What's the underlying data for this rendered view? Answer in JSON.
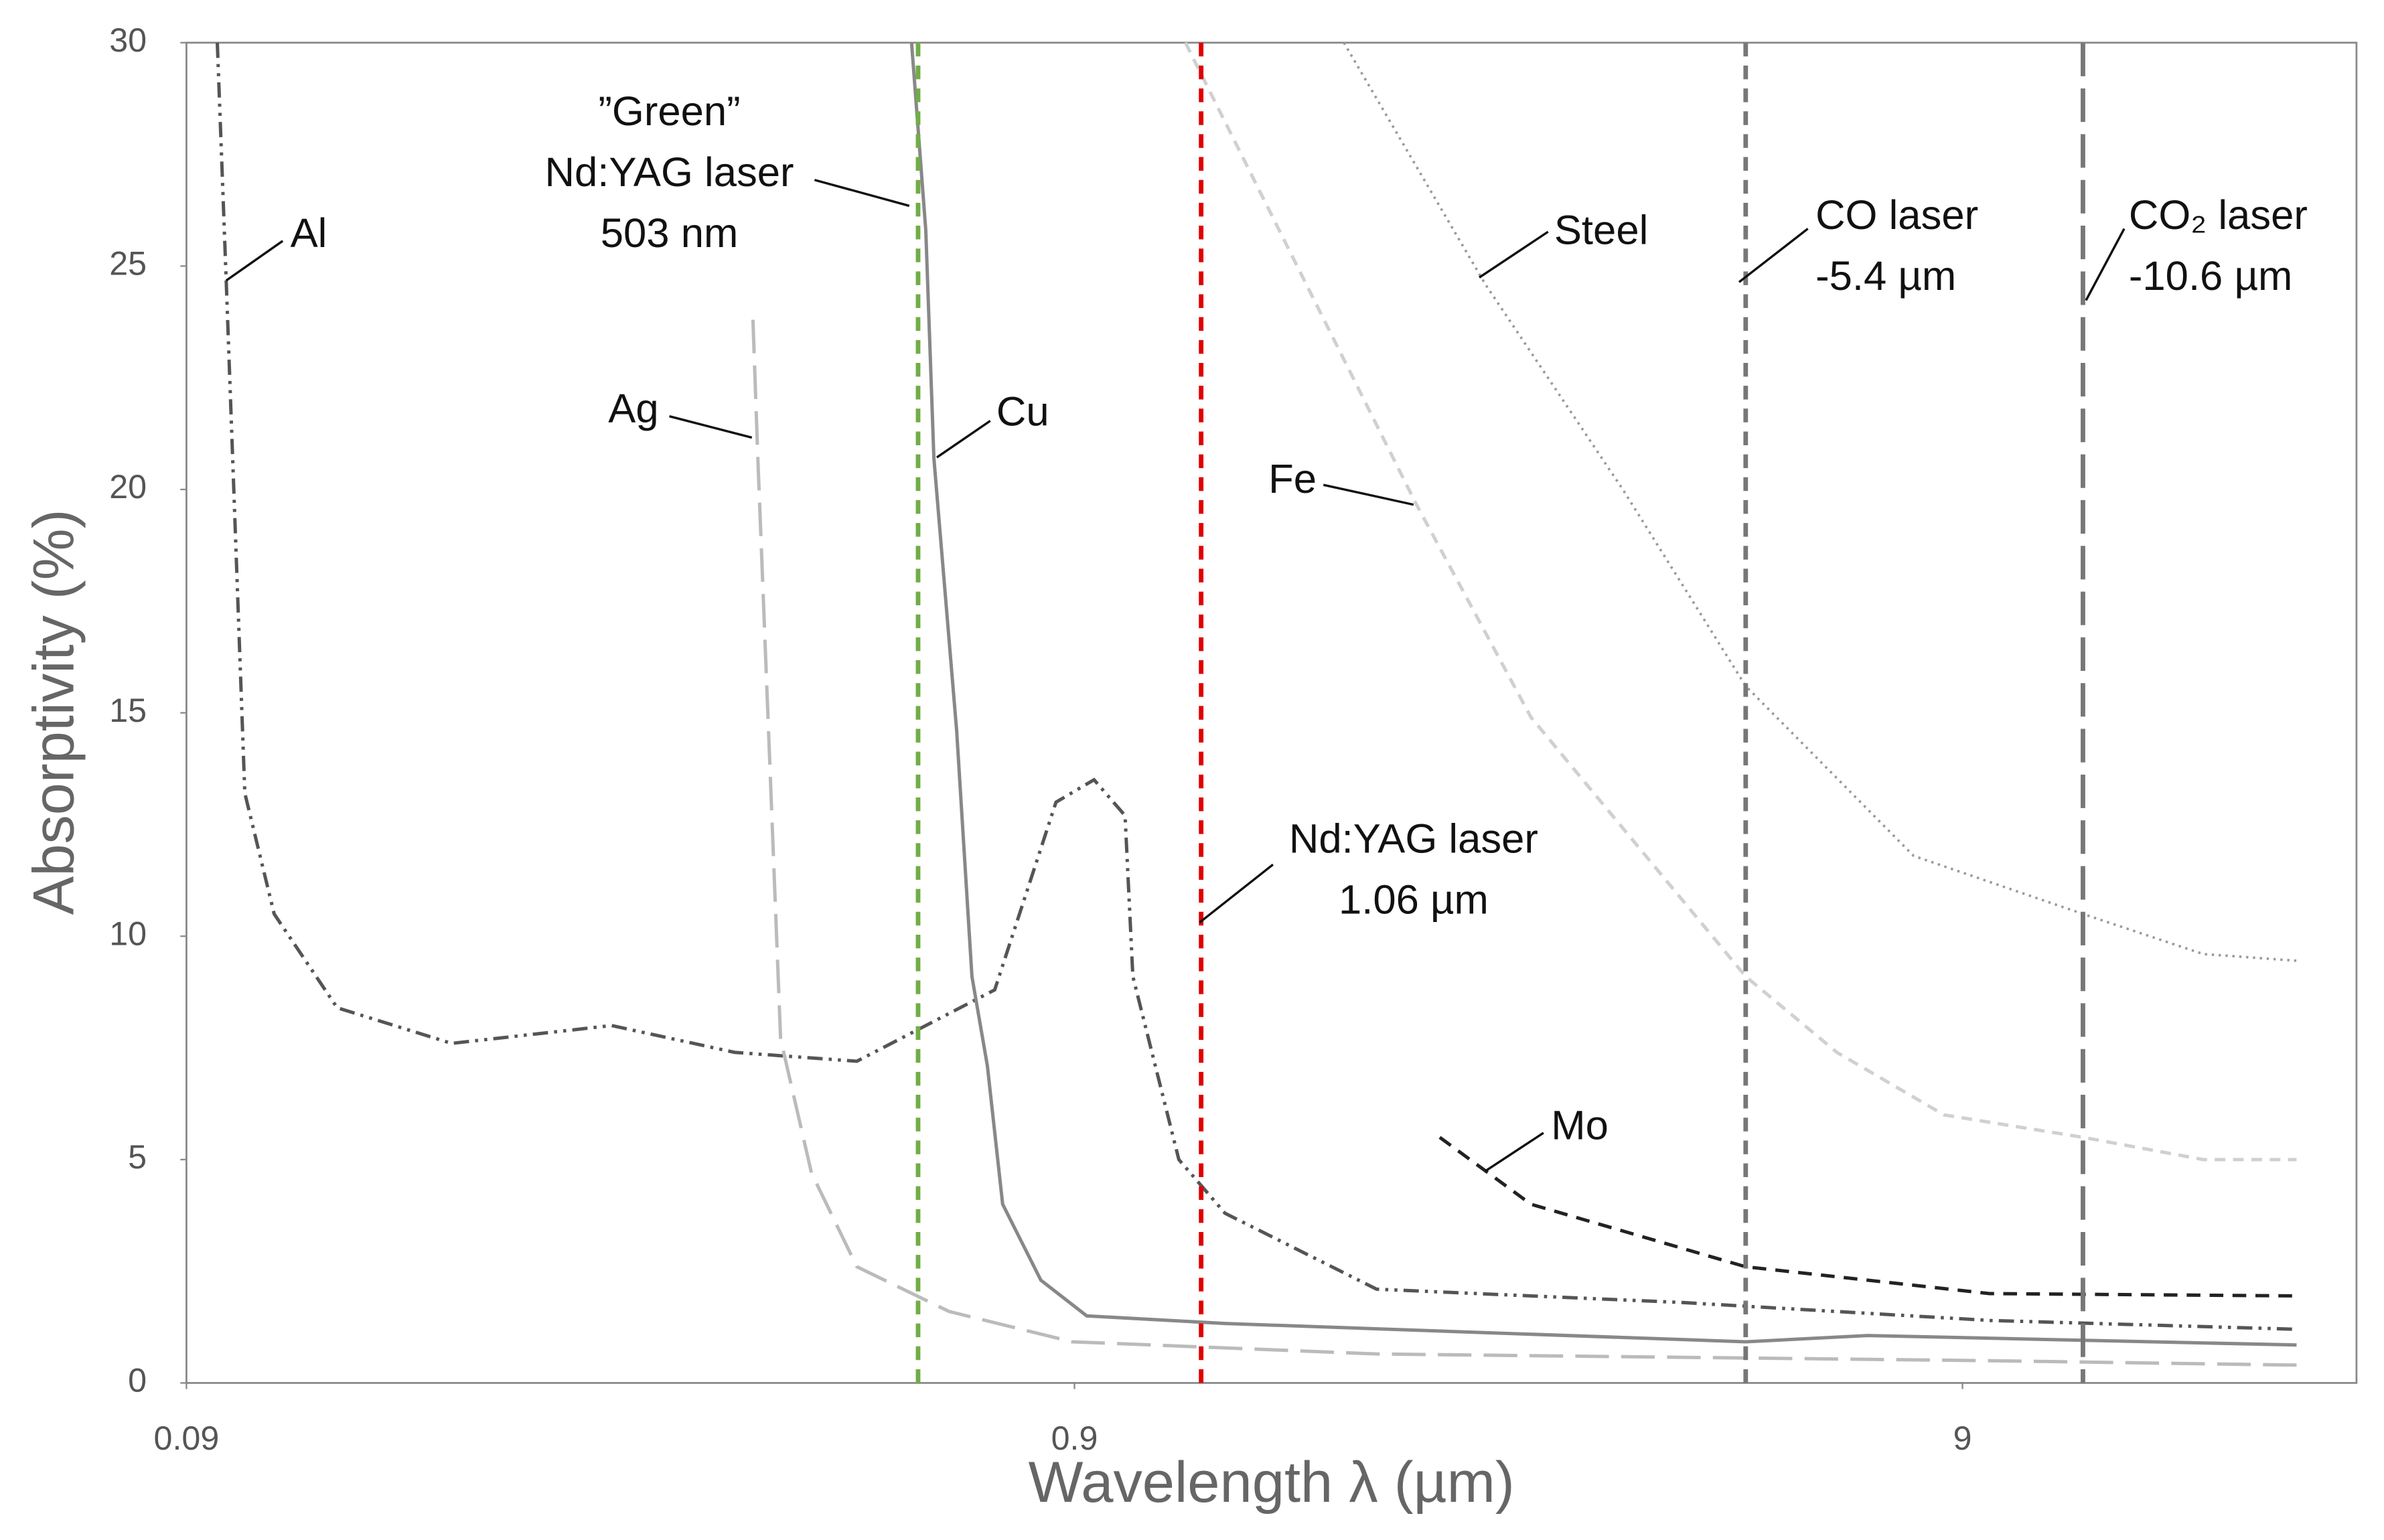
{
  "chart_data": {
    "type": "line",
    "x_label": "Wavelength λ (µm)",
    "y_label": "Absorptivity (%)",
    "xscale": "log",
    "xlim": [
      0.09,
      25
    ],
    "ylim": [
      0,
      30
    ],
    "xticks": [
      0.09,
      0.9,
      9
    ],
    "yticks": [
      0,
      5,
      10,
      15,
      20,
      25,
      30
    ],
    "series": [
      {
        "name": "Al",
        "color": "#555555",
        "dash": "dashdot",
        "x": [
          0.0975,
          0.0998,
          0.1047,
          0.113,
          0.133,
          0.179,
          0.271,
          0.373,
          0.512,
          0.732,
          0.858,
          0.947,
          1.026,
          1.047,
          1.18,
          1.33,
          1.97,
          4.37,
          9.66,
          21.4
        ],
        "y": [
          30,
          24.6,
          13.2,
          10.5,
          8.4,
          7.6,
          8.0,
          7.4,
          7.2,
          8.8,
          13.0,
          13.5,
          12.7,
          9.1,
          5.0,
          3.8,
          2.1,
          1.8,
          1.4,
          1.2
        ]
      },
      {
        "name": "Ag",
        "color": "#bbbbbb",
        "dash": "longdash",
        "x": [
          0.391,
          0.396,
          0.42,
          0.455,
          0.512,
          0.65,
          0.894,
          1.97,
          9.66,
          21.4
        ],
        "y": [
          23.8,
          20.7,
          7.7,
          4.7,
          2.6,
          1.6,
          0.92,
          0.65,
          0.5,
          0.4
        ]
      },
      {
        "name": "Cu",
        "color": "#888888",
        "dash": "solid",
        "x": [
          0.59,
          0.612,
          0.625,
          0.663,
          0.69,
          0.718,
          0.747,
          0.825,
          0.929,
          1.33,
          5.13,
          7.04,
          21.4
        ],
        "y": [
          30,
          25.8,
          20.7,
          14.6,
          9.1,
          7.1,
          4.0,
          2.3,
          1.5,
          1.33,
          0.92,
          1.06,
          0.85
        ]
      },
      {
        "name": "Fe",
        "color": "#d0d0d0",
        "dash": "shortdash",
        "x": [
          1.2,
          2.18,
          2.94,
          5.13,
          6.5,
          8.58,
          12.3,
          16.8,
          21.4
        ],
        "y": [
          30,
          19.7,
          14.9,
          9.1,
          7.4,
          6.0,
          5.5,
          5.0,
          5.0
        ]
      },
      {
        "name": "Steel",
        "color": "#999999",
        "dash": "dotted",
        "x": [
          1.81,
          2.61,
          3.73,
          5.13,
          7.93,
          12.3,
          16.8,
          21.4
        ],
        "y": [
          30,
          24.6,
          20.0,
          15.6,
          11.8,
          10.5,
          9.6,
          9.45
        ]
      },
      {
        "name": "Mo",
        "color": "#222222",
        "dash": "dashed",
        "x": [
          2.32,
          2.94,
          5.13,
          9.66,
          21.4
        ],
        "y": [
          5.5,
          4.0,
          2.6,
          2.0,
          1.95
        ]
      }
    ],
    "lasers": [
      {
        "label": [
          "”Green”",
          "Nd:YAG laser",
          "503 nm"
        ],
        "x": 0.6,
        "color": "#70ad47",
        "dash": "dashed"
      },
      {
        "label": [
          "Nd:YAG laser",
          "1.06 µm"
        ],
        "x": 1.25,
        "color": "#e00000",
        "dash": "dashed"
      },
      {
        "label": [
          "CO laser",
          "-5.4 µm"
        ],
        "x": 5.13,
        "color": "#777777",
        "dash": "dashed"
      },
      {
        "label": [
          "CO₂ laser",
          "-10.6 µm"
        ],
        "x": 12.3,
        "color": "#777777",
        "dash": "longdash"
      }
    ]
  }
}
